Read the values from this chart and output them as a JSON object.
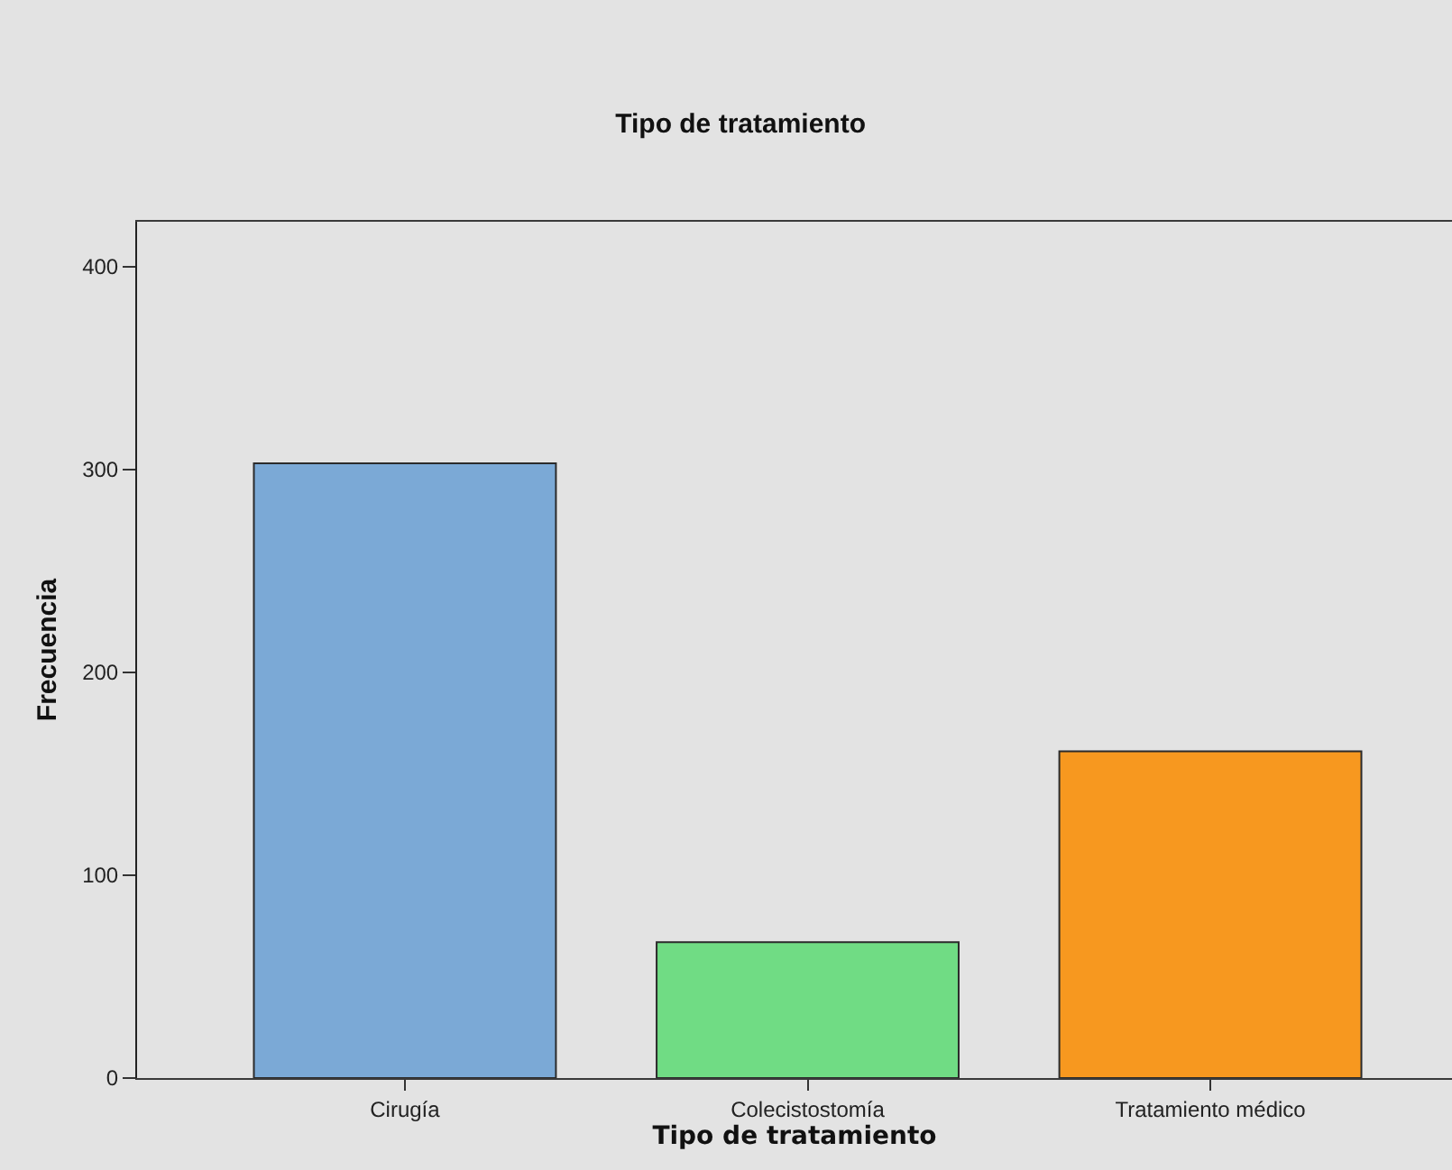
{
  "chart_data": {
    "type": "bar",
    "title": "Tipo de tratamiento",
    "xlabel": "Tipo de tratamiento",
    "ylabel": "Frecuencia",
    "categories": [
      "Cirugía",
      "Colecistostomía",
      "Tratamiento médico"
    ],
    "values": [
      303,
      67,
      161
    ],
    "colors": [
      "#7ba9d6",
      "#70dc84",
      "#f7981f"
    ],
    "ylim": [
      0,
      422
    ],
    "yticks": [
      0,
      100,
      200,
      300,
      400
    ]
  }
}
